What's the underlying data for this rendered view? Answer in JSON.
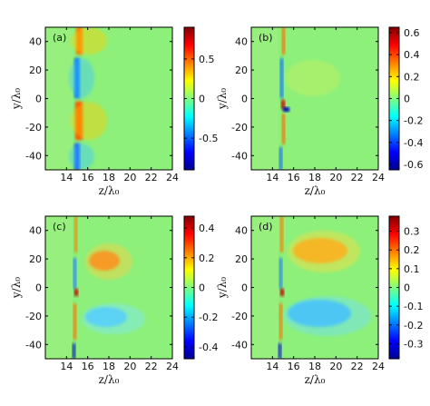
{
  "chart_data": [
    {
      "type": "heatmap",
      "label": "(a)",
      "xlabel": "z/λ₀",
      "ylabel": "y/λ₀",
      "x_ticks": [
        "14",
        "16",
        "18",
        "20",
        "22",
        "24"
      ],
      "y_ticks": [
        "40",
        "20",
        "0",
        "-20",
        "-40"
      ],
      "colorbar_ticks": [
        "0.5",
        "0",
        "-0.5"
      ],
      "colorbar_range": [
        -0.9,
        0.9
      ],
      "xlim": [
        12,
        24
      ],
      "ylim": [
        -50,
        50
      ]
    },
    {
      "type": "heatmap",
      "label": "(b)",
      "xlabel": "z/λ₀",
      "ylabel": "y/λ₀",
      "x_ticks": [
        "14",
        "16",
        "18",
        "20",
        "22",
        "24"
      ],
      "y_ticks": [
        "40",
        "20",
        "0",
        "-20",
        "-40"
      ],
      "colorbar_ticks": [
        "0.6",
        "0.4",
        "0.2",
        "0",
        "-0.2",
        "-0.4",
        "-0.6"
      ],
      "colorbar_range": [
        -0.65,
        0.65
      ],
      "xlim": [
        12,
        24
      ],
      "ylim": [
        -50,
        50
      ]
    },
    {
      "type": "heatmap",
      "label": "(c)",
      "xlabel": "z/λ₀",
      "ylabel": "y/λ₀",
      "x_ticks": [
        "14",
        "16",
        "18",
        "20",
        "22",
        "24"
      ],
      "y_ticks": [
        "40",
        "20",
        "0",
        "-20",
        "-40"
      ],
      "colorbar_ticks": [
        "0.4",
        "0.2",
        "0",
        "-0.2",
        "-0.4"
      ],
      "colorbar_range": [
        -0.48,
        0.48
      ],
      "xlim": [
        12,
        24
      ],
      "ylim": [
        -50,
        50
      ]
    },
    {
      "type": "heatmap",
      "label": "(d)",
      "xlabel": "z/λ₀",
      "ylabel": "y/λ₀",
      "x_ticks": [
        "14",
        "16",
        "18",
        "20",
        "22",
        "24"
      ],
      "y_ticks": [
        "40",
        "20",
        "0",
        "-20",
        "-40"
      ],
      "colorbar_ticks": [
        "0.3",
        "0.2",
        "0.1",
        "0",
        "-0.1",
        "-0.2",
        "-0.3"
      ],
      "colorbar_range": [
        -0.38,
        0.38
      ],
      "xlim": [
        12,
        24
      ],
      "ylim": [
        -50,
        50
      ]
    }
  ]
}
